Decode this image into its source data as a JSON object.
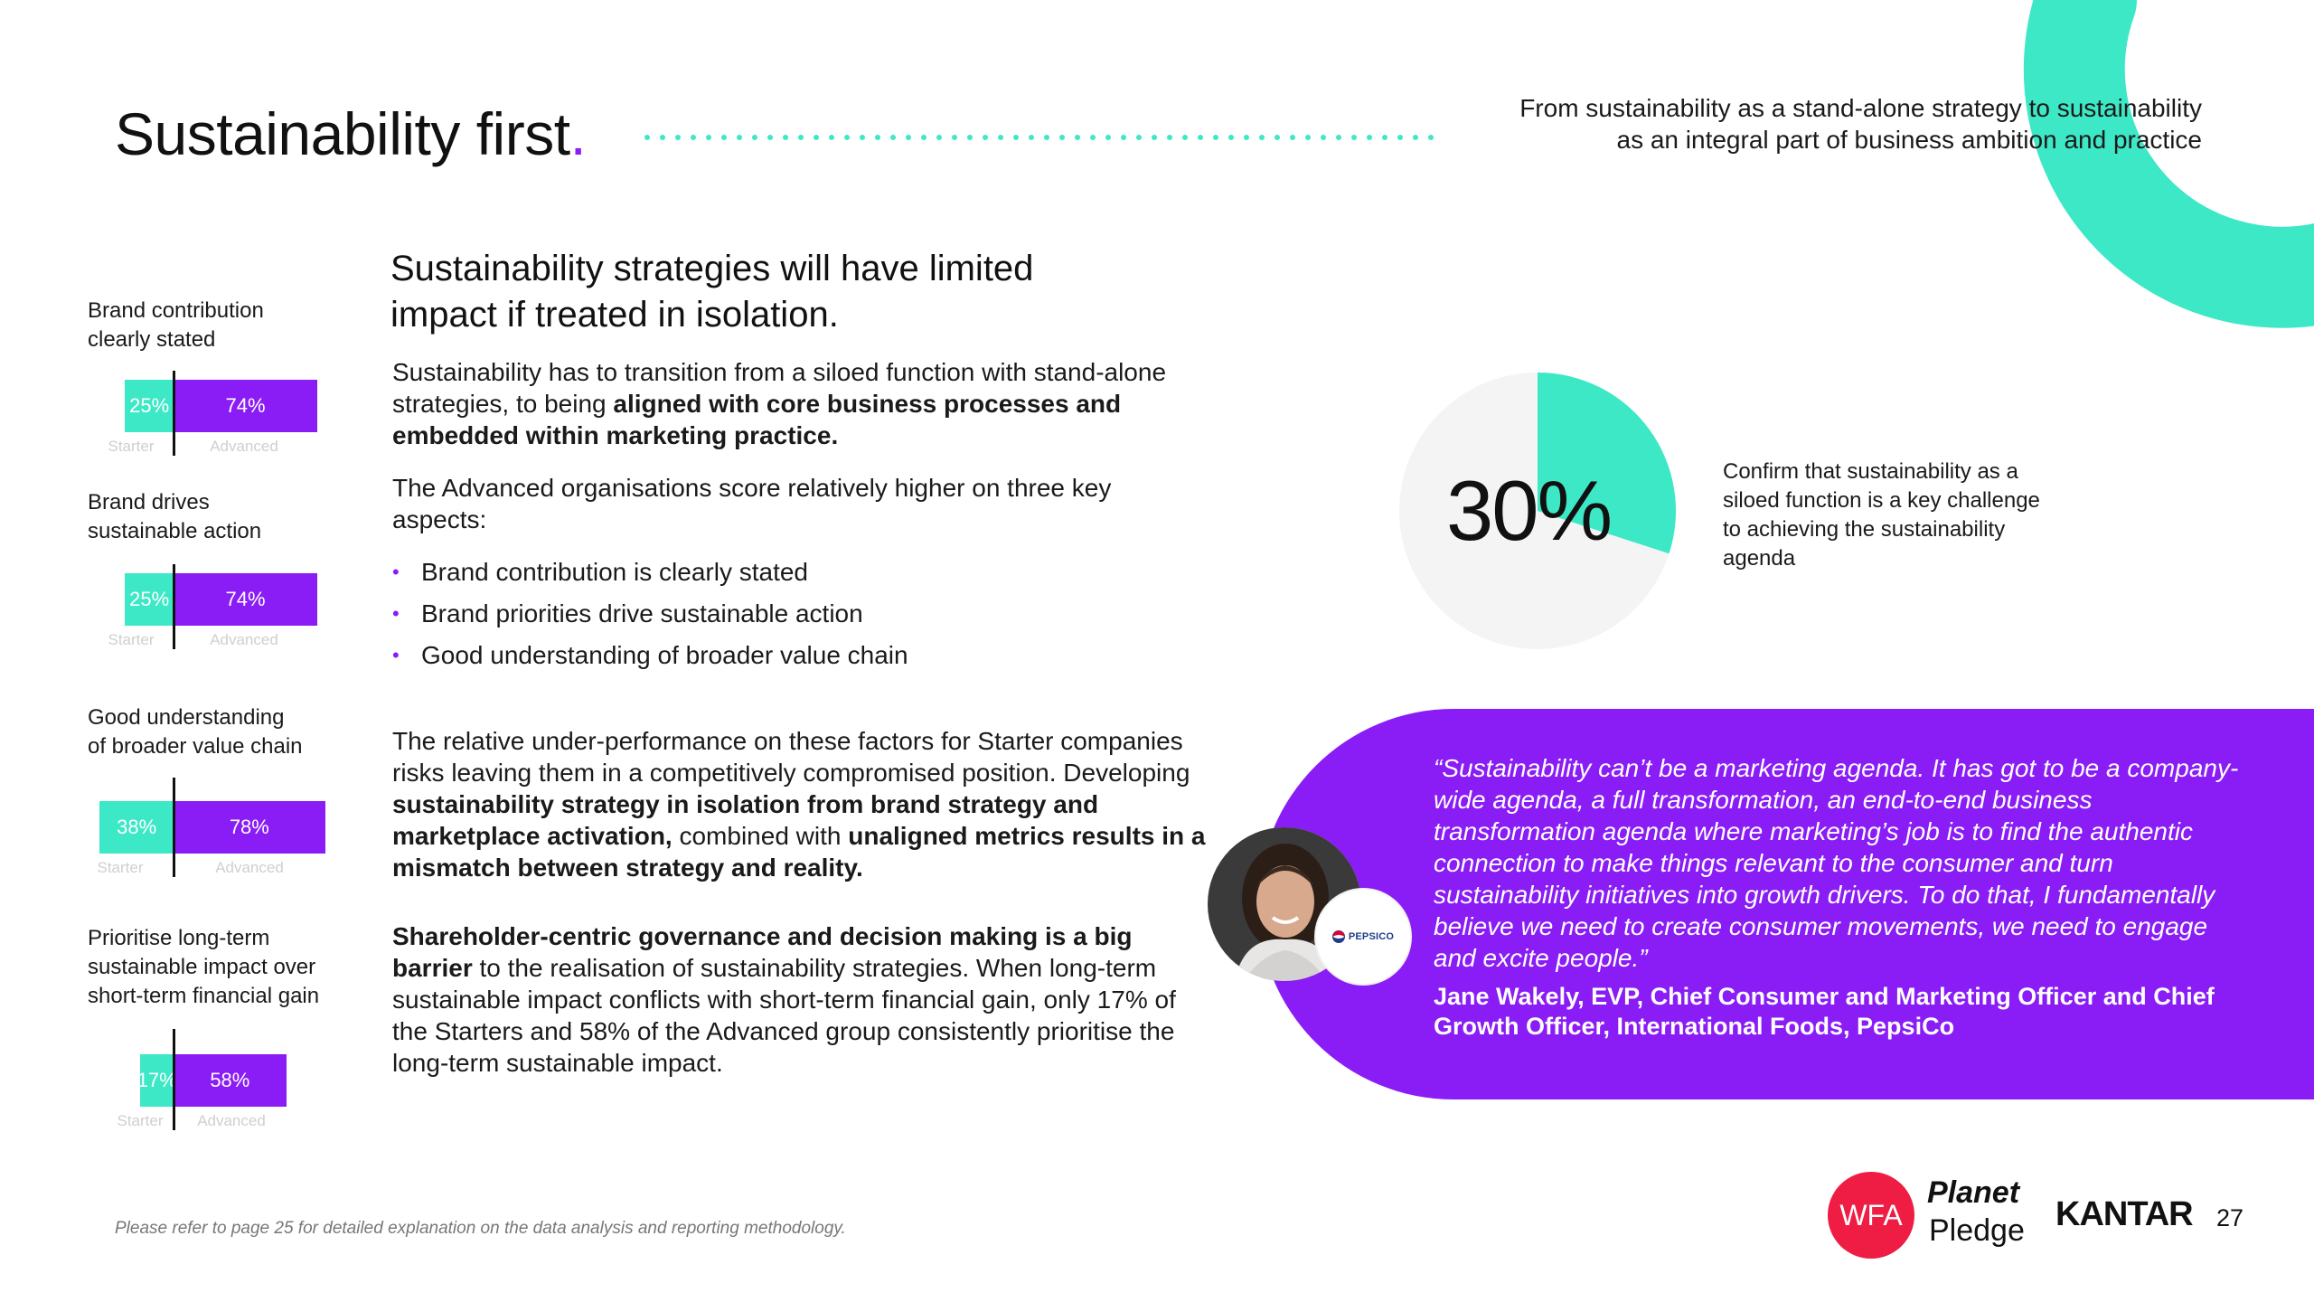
{
  "header": {
    "title": "Sustainability first",
    "title_dot": ".",
    "subtitle_line1": "From sustainability as a stand-alone strategy to sustainability",
    "subtitle_line2": "as an integral part of business ambition and practice"
  },
  "colors": {
    "accent_purple": "#8a1cf5",
    "accent_teal": "#3de8c6",
    "wfa_red": "#ef1c43"
  },
  "metrics": [
    {
      "label_line1": "Brand contribution",
      "label_line2": "clearly stated",
      "starter_pct": 25,
      "starter_label": "25%",
      "advanced_pct": 74,
      "advanced_label": "74%",
      "starter_caption": "Starter",
      "advanced_caption": "Advanced"
    },
    {
      "label_line1": "Brand drives",
      "label_line2": "sustainable action",
      "starter_pct": 25,
      "starter_label": "25%",
      "advanced_pct": 74,
      "advanced_label": "74%",
      "starter_caption": "Starter",
      "advanced_caption": "Advanced"
    },
    {
      "label_line1": "Good understanding",
      "label_line2": "of broader value chain",
      "starter_pct": 38,
      "starter_label": "38%",
      "advanced_pct": 78,
      "advanced_label": "78%",
      "starter_caption": "Starter",
      "advanced_caption": "Advanced"
    },
    {
      "label_line1": "Prioritise long-term",
      "label_line2": "sustainable impact over",
      "label_line3": "short-term financial gain",
      "starter_pct": 17,
      "starter_label": "17%",
      "advanced_pct": 58,
      "advanced_label": "58%",
      "starter_caption": "Starter",
      "advanced_caption": "Advanced"
    }
  ],
  "main": {
    "heading_line1": "Sustainability strategies will have limited",
    "heading_line2": "impact if treated in isolation.",
    "p1_a": "Sustainability has to transition from a siloed function with stand-alone strategies, to being ",
    "p1_b": "aligned with core business processes and embedded within marketing practice.",
    "p2": "The Advanced organisations score relatively higher on three key aspects:",
    "bullets": [
      "Brand contribution is clearly stated",
      "Brand priorities drive sustainable action",
      "Good understanding of broader value chain"
    ],
    "p3_a": "The relative under-performance on these factors for Starter companies risks leaving them in a competitively compromised position. Developing ",
    "p3_b": "sustainability strategy in isolation from brand strategy and marketplace activation,",
    "p3_c": " combined with ",
    "p3_d": "unaligned metrics results in a mismatch between strategy and reality.",
    "p4_a": "Shareholder-centric governance and decision making is a big barrier",
    "p4_b": " to the realisation of sustainability strategies. When long-term sustainable impact conflicts with short-term financial gain, only 17% of the Starters and 58% of the Advanced group consistently prioritise the long-term sustainable impact."
  },
  "stat": {
    "value": "30%",
    "fraction": 0.3,
    "caption": "Confirm that sustainability as a siloed function is a key challenge to achieving the sustainability agenda"
  },
  "quote": {
    "text": "“Sustainability can’t be a marketing agenda. It has got to be a company-wide agenda, a full transformation, an end-to-end business transformation agenda where marketing’s job is to find the authentic connection to make things relevant to the consumer and turn sustainability initiatives into growth drivers. To do that, I fundamentally believe we need to create consumer movements, we need to engage and excite people.”",
    "author": "Jane Wakely, EVP, Chief Consumer and Marketing Officer and Chief Growth Officer, International Foods, PepsiCo",
    "company_logo_text": "PEPSICO"
  },
  "footer": {
    "note": "Please refer to page 25 for detailed explanation on the data analysis and reporting methodology.",
    "wfa": "WFA",
    "planet": "Planet",
    "pledge": "Pledge",
    "kantar": "KANTAR",
    "page_number": "27"
  }
}
